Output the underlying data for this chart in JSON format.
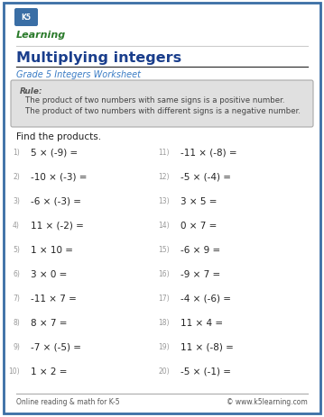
{
  "title": "Multiplying integers",
  "subtitle": "Grade 5 Integers Worksheet",
  "rule_label": "Rule:",
  "rule_lines": [
    "The product of two numbers with same signs is a positive number.",
    "The product of two numbers with different signs is a negative number."
  ],
  "instruction": "Find the products.",
  "left_problems": [
    "5 × (-9) =",
    "-10 × (-3) =",
    "-6 × (-3) =",
    "11 × (-2) =",
    "1 × 10 =",
    "3 × 0 =",
    "-11 × 7 =",
    "8 × 7 =",
    "-7 × (-5) =",
    "1 × 2 ="
  ],
  "right_problems": [
    "-11 × (-8) =",
    "-5 × (-4) =",
    "3 × 5 =",
    "0 × 7 =",
    "-6 × 9 =",
    "-9 × 7 =",
    "-4 × (-6) =",
    "11 × 4 =",
    "11 × (-8) =",
    "-5 × (-1) ="
  ],
  "left_nums": [
    "1)",
    "2)",
    "3)",
    "4)",
    "5)",
    "6)",
    "7)",
    "8)",
    "9)",
    "10)"
  ],
  "right_nums": [
    "11)",
    "12)",
    "13)",
    "14)",
    "15)",
    "16)",
    "17)",
    "18)",
    "19)",
    "20)"
  ],
  "footer_left": "Online reading & math for K-5",
  "footer_right": "© www.k5learning.com",
  "bg_color": "#ffffff",
  "border_color": "#3a6ea5",
  "title_color": "#1a3e8c",
  "subtitle_color": "#3a7cc5",
  "rule_box_bg": "#e0e0e0",
  "rule_box_border": "#aaaaaa",
  "rule_label_color": "#555555",
  "rule_text_color": "#444444",
  "text_color": "#222222",
  "num_color": "#999999",
  "footer_line_color": "#aaaaaa",
  "footer_text_color": "#555555",
  "problem_font_size": 7.5,
  "num_font_size": 5.5,
  "title_font_size": 11.5,
  "subtitle_font_size": 7.0,
  "instruction_font_size": 7.5,
  "footer_font_size": 5.5
}
